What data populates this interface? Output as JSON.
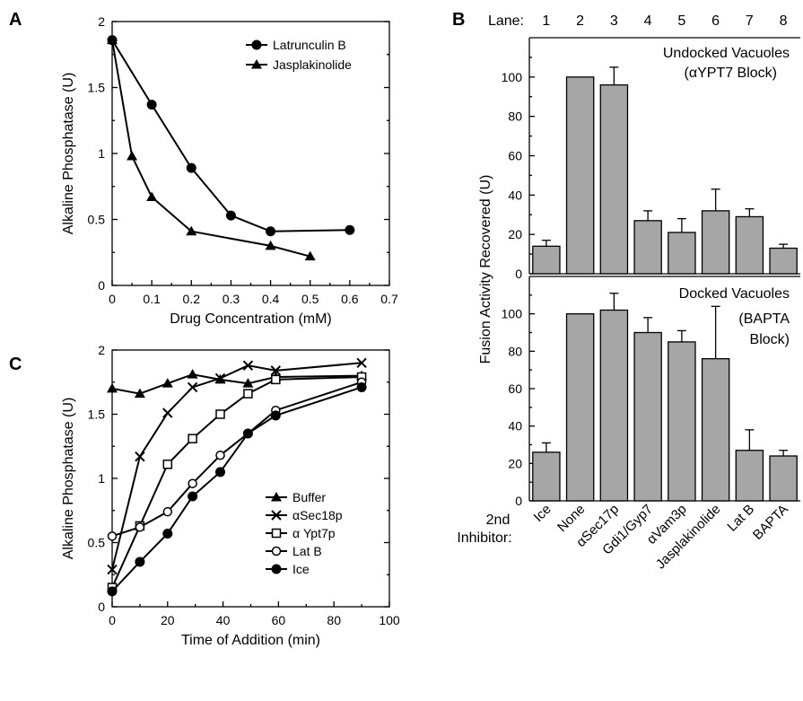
{
  "panels": {
    "A": "A",
    "B": "B",
    "C": "C"
  },
  "chart_data": [
    {
      "id": "A",
      "type": "line",
      "title": "",
      "xlabel": "Drug Concentration (mM)",
      "ylabel": "Alkaline Phosphatase (U)",
      "xlim": [
        0,
        0.7
      ],
      "ylim": [
        0,
        2
      ],
      "xticks": [
        "0",
        "0.1",
        "0.2",
        "0.3",
        "0.4",
        "0.5",
        "0.6",
        "0.7"
      ],
      "yticks": [
        "0",
        "0.5",
        "1",
        "1.5",
        "2"
      ],
      "legend_position": "top-right",
      "grid": false,
      "series": [
        {
          "name": "Latrunculin B",
          "marker": "circle",
          "x": [
            0,
            0.1,
            0.2,
            0.3,
            0.4,
            0.6
          ],
          "y": [
            1.86,
            1.37,
            0.89,
            0.53,
            0.41,
            0.42
          ]
        },
        {
          "name": "Jasplakinolide",
          "marker": "triangle",
          "x": [
            0,
            0.05,
            0.1,
            0.2,
            0.4,
            0.5
          ],
          "y": [
            1.86,
            0.98,
            0.67,
            0.41,
            0.3,
            0.22
          ]
        }
      ]
    },
    {
      "id": "B",
      "type": "bar",
      "title": "",
      "lane_prefix": "Lane:",
      "lanes": [
        "1",
        "2",
        "3",
        "4",
        "5",
        "6",
        "7",
        "8"
      ],
      "ylabel": "Fusion Activity Recovered (U)",
      "row_label": "2nd Inhibitor:",
      "categories": [
        "Ice",
        "None",
        "αSec17p",
        "Gdi1/Gyp7",
        "αVam3p",
        "Jasplakinolide",
        "Lat B",
        "BAPTA"
      ],
      "yticks": [
        "0",
        "20",
        "40",
        "60",
        "80",
        "100"
      ],
      "ylim": [
        0,
        120
      ],
      "subpanels": [
        {
          "label": "Undocked Vacuoles",
          "label2": "(αYPT7 Block)",
          "values": [
            14,
            100,
            96,
            27,
            21,
            32,
            29,
            13
          ],
          "errors": [
            3,
            0,
            9,
            5,
            7,
            11,
            4,
            2
          ]
        },
        {
          "label": "Docked Vacuoles",
          "label2": "(BAPTA",
          "label3": "Block)",
          "values": [
            26,
            100,
            102,
            90,
            85,
            76,
            27,
            24
          ],
          "errors": [
            5,
            0,
            9,
            8,
            6,
            28,
            11,
            3
          ]
        }
      ]
    },
    {
      "id": "C",
      "type": "line",
      "title": "",
      "xlabel": "Time of Addition (min)",
      "ylabel": "Alkaline Phosphatase (U)",
      "xlim": [
        0,
        100
      ],
      "ylim": [
        0,
        2
      ],
      "xticks": [
        "0",
        "20",
        "40",
        "60",
        "80",
        "100"
      ],
      "yticks": [
        "0",
        "0.5",
        "1",
        "1.5",
        "2"
      ],
      "legend_position": "bottom-right",
      "grid": false,
      "series": [
        {
          "name": "Buffer",
          "marker": "triangle",
          "x": [
            0,
            10,
            20,
            29,
            39,
            49,
            59,
            90
          ],
          "y": [
            1.7,
            1.66,
            1.74,
            1.81,
            1.77,
            1.74,
            1.79,
            1.8
          ]
        },
        {
          "name": "αSec18p",
          "marker": "x",
          "x": [
            0,
            10,
            20,
            29,
            39,
            49,
            59,
            90
          ],
          "y": [
            0.29,
            1.17,
            1.51,
            1.71,
            1.78,
            1.88,
            1.84,
            1.9
          ]
        },
        {
          "name": "α Ypt7p",
          "marker": "square-open",
          "x": [
            0,
            10,
            20,
            29,
            39,
            49,
            59,
            90
          ],
          "y": [
            0.15,
            0.63,
            1.11,
            1.31,
            1.5,
            1.66,
            1.77,
            1.79
          ]
        },
        {
          "name": "Lat B",
          "marker": "circle-open",
          "x": [
            0,
            10,
            20,
            29,
            39,
            49,
            59,
            90
          ],
          "y": [
            0.55,
            0.62,
            0.74,
            0.96,
            1.18,
            1.35,
            1.53,
            1.75
          ]
        },
        {
          "name": "Ice",
          "marker": "circle",
          "x": [
            0,
            10,
            20,
            29,
            39,
            49,
            59,
            90
          ],
          "y": [
            0.12,
            0.35,
            0.57,
            0.86,
            1.05,
            1.35,
            1.49,
            1.71
          ]
        }
      ]
    }
  ]
}
